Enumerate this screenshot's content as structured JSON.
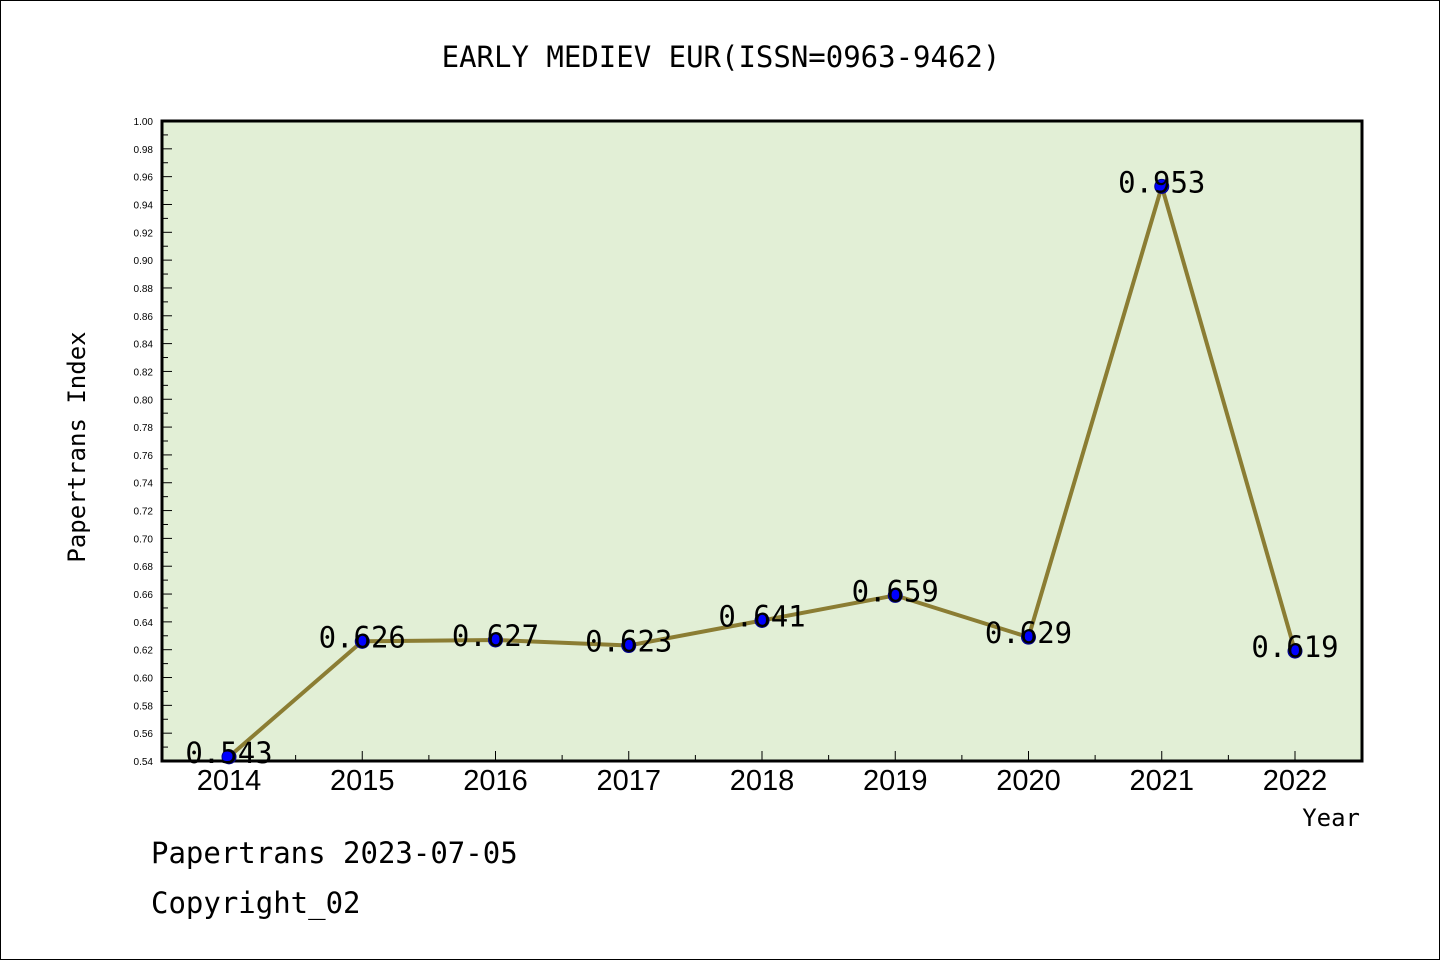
{
  "chart_data": {
    "type": "line",
    "title": "EARLY MEDIEV EUR(ISSN=0963-9462)",
    "xlabel": "Year",
    "ylabel": "Papertrans Index",
    "categories": [
      "2014",
      "2015",
      "2016",
      "2017",
      "2018",
      "2019",
      "2020",
      "2021",
      "2022"
    ],
    "series": [
      {
        "values": [
          0.543,
          0.626,
          0.627,
          0.623,
          0.641,
          0.659,
          0.629,
          0.953,
          0.619
        ]
      }
    ],
    "data_labels": [
      "0.543",
      "0.626",
      "0.627",
      "0.623",
      "0.641",
      "0.659",
      "0.629",
      "0.953",
      "0.619"
    ],
    "ylim": [
      0.54,
      1.0
    ],
    "y_ticks": [
      "0.54",
      "0.56",
      "0.58",
      "0.60",
      "0.62",
      "0.64",
      "0.66",
      "0.68",
      "0.70",
      "0.72",
      "0.74",
      "0.76",
      "0.78",
      "0.80",
      "0.82",
      "0.84",
      "0.86",
      "0.88",
      "0.90",
      "0.92",
      "0.94",
      "0.96",
      "0.98",
      "1.00"
    ],
    "grid": false,
    "colors": {
      "plot_background": "#e2efd6",
      "line": "#8b7d33",
      "marker": "#0000ff"
    }
  },
  "footer": {
    "date_line": "Papertrans 2023-07-05",
    "copyright": "Copyright_02"
  }
}
